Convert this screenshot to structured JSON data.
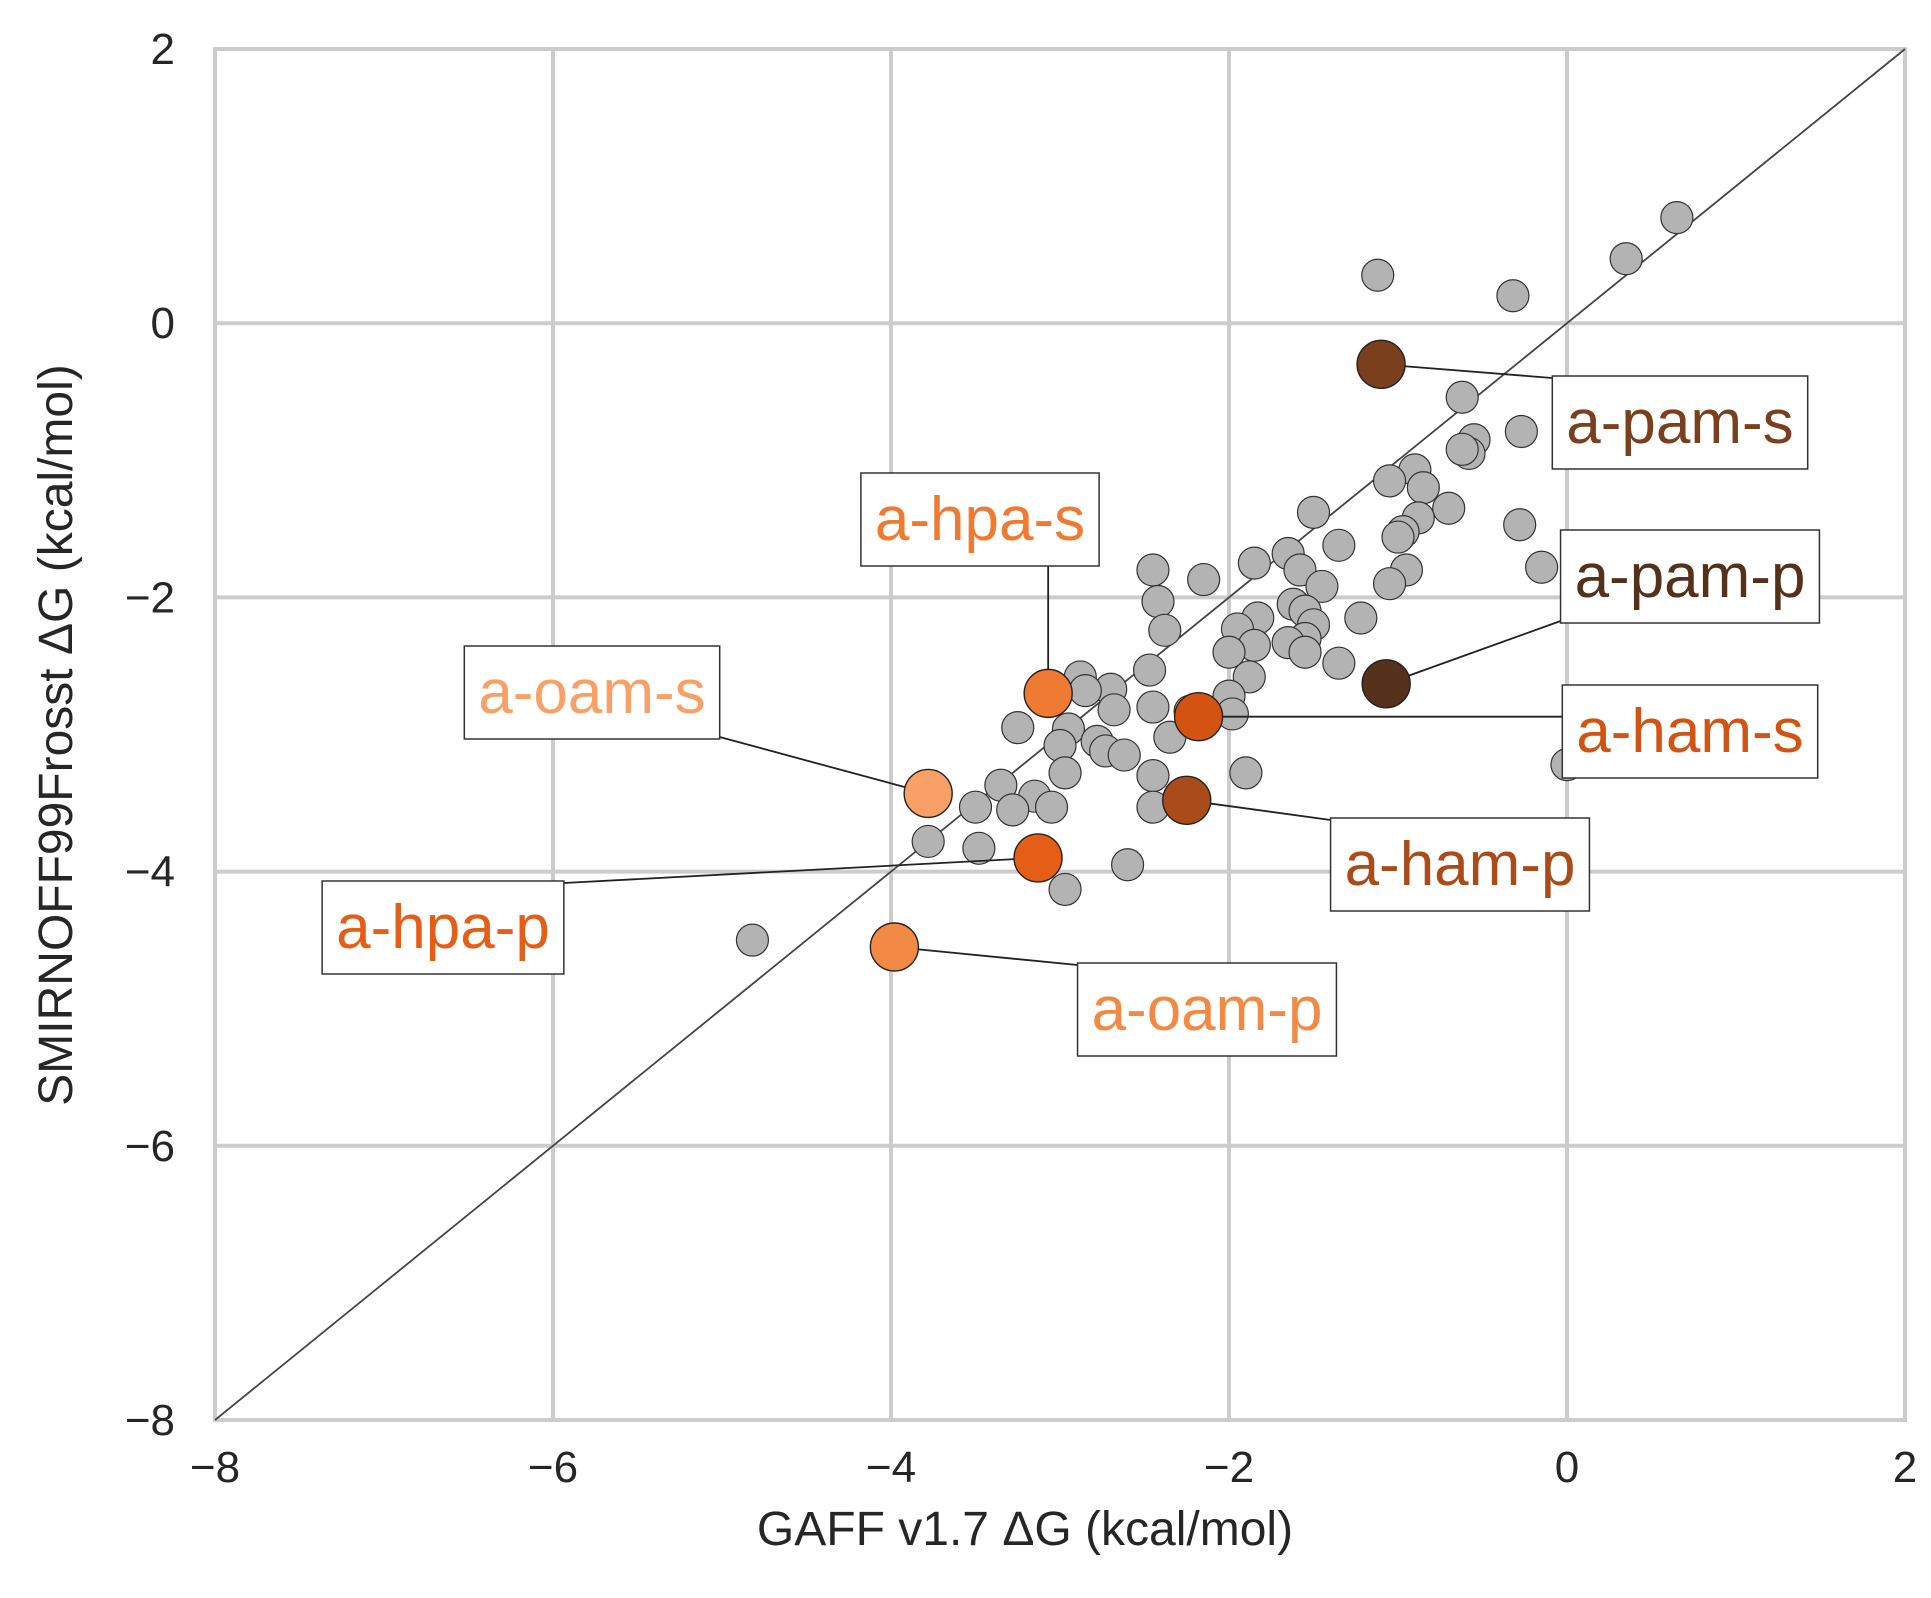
{
  "chart_data": {
    "type": "scatter",
    "xlabel": "GAFF v1.7 ΔG (kcal/mol)",
    "ylabel": "SMIRNOFF99Frosst ΔG (kcal/mol)",
    "xlim": [
      -8,
      2
    ],
    "ylim": [
      -8,
      2
    ],
    "x_ticks": [
      -8,
      -6,
      -4,
      -2,
      0,
      2
    ],
    "y_ticks": [
      -8,
      -6,
      -4,
      -2,
      0,
      2
    ],
    "x_tick_labels": [
      "−8",
      "−6",
      "−4",
      "−2",
      "0",
      "2"
    ],
    "y_tick_labels": [
      "−8",
      "−6",
      "−4",
      "−2",
      "0",
      "2"
    ],
    "grid": true,
    "identity_line": true,
    "colors": {
      "gray_point": "#b3b3b3",
      "grid": "#cccccc",
      "axis_text": "#262626",
      "identity_line": "#444444"
    },
    "points": [
      [
        0.65,
        0.77
      ],
      [
        0.35,
        0.47
      ],
      [
        -1.12,
        0.35
      ],
      [
        -0.32,
        0.2
      ],
      [
        -0.62,
        -0.54
      ],
      [
        -0.27,
        -0.79
      ],
      [
        0.25,
        -0.79
      ],
      [
        -0.55,
        -0.85
      ],
      [
        -0.58,
        -0.95
      ],
      [
        -0.62,
        -0.92
      ],
      [
        -0.9,
        -1.07
      ],
      [
        -1.05,
        -1.15
      ],
      [
        -0.85,
        -1.2
      ],
      [
        -0.7,
        -1.35
      ],
      [
        -1.5,
        -1.38
      ],
      [
        -0.28,
        -1.47
      ],
      [
        -0.88,
        -1.42
      ],
      [
        -0.97,
        -1.52
      ],
      [
        -1.0,
        -1.56
      ],
      [
        -1.35,
        -1.62
      ],
      [
        -1.65,
        -1.68
      ],
      [
        -1.58,
        -1.8
      ],
      [
        -1.85,
        -1.75
      ],
      [
        -2.45,
        -1.8
      ],
      [
        -2.15,
        -1.87
      ],
      [
        -0.95,
        -1.8
      ],
      [
        -0.15,
        -1.78
      ],
      [
        -1.05,
        -1.9
      ],
      [
        -1.45,
        -1.92
      ],
      [
        -1.62,
        -2.05
      ],
      [
        -2.42,
        -2.03
      ],
      [
        -1.55,
        -2.1
      ],
      [
        -1.22,
        -2.15
      ],
      [
        -1.5,
        -2.2
      ],
      [
        -1.83,
        -2.15
      ],
      [
        -1.95,
        -2.23
      ],
      [
        -2.38,
        -2.24
      ],
      [
        -1.55,
        -2.3
      ],
      [
        -1.65,
        -2.33
      ],
      [
        -1.85,
        -2.35
      ],
      [
        -1.55,
        -2.4
      ],
      [
        -2.0,
        -2.4
      ],
      [
        -1.35,
        -2.48
      ],
      [
        -2.47,
        -2.53
      ],
      [
        -2.88,
        -2.58
      ],
      [
        -1.88,
        -2.58
      ],
      [
        -2.7,
        -2.67
      ],
      [
        -2.85,
        -2.68
      ],
      [
        -2.0,
        -2.72
      ],
      [
        -2.45,
        -2.8
      ],
      [
        -2.23,
        -2.83
      ],
      [
        -2.68,
        -2.82
      ],
      [
        -1.98,
        -2.85
      ],
      [
        -3.25,
        -2.95
      ],
      [
        -2.95,
        -2.96
      ],
      [
        -2.35,
        -3.02
      ],
      [
        -2.78,
        -3.05
      ],
      [
        -3.0,
        -3.08
      ],
      [
        -2.73,
        -3.12
      ],
      [
        -2.62,
        -3.15
      ],
      [
        -2.97,
        -3.28
      ],
      [
        -1.9,
        -3.28
      ],
      [
        -2.45,
        -3.3
      ],
      [
        -3.35,
        -3.37
      ],
      [
        -3.15,
        -3.45
      ],
      [
        -3.5,
        -3.53
      ],
      [
        -3.28,
        -3.55
      ],
      [
        -3.05,
        -3.53
      ],
      [
        -2.45,
        -3.53
      ],
      [
        -3.78,
        -3.78
      ],
      [
        -3.48,
        -3.83
      ],
      [
        -2.6,
        -3.95
      ],
      [
        -2.97,
        -4.13
      ],
      [
        -4.82,
        -4.5
      ],
      [
        0.28,
        -0.78
      ],
      [
        0.0,
        -3.22
      ]
    ],
    "highlighted": [
      {
        "label": "a-pam-s",
        "x": -1.1,
        "y": -0.3,
        "color": "#7a3f1d"
      },
      {
        "label": "a-pam-p",
        "x": -1.07,
        "y": -2.63,
        "color": "#55301b"
      },
      {
        "label": "a-hpa-s",
        "x": -3.07,
        "y": -2.7,
        "color": "#f07a32"
      },
      {
        "label": "a-ham-s",
        "x": -2.18,
        "y": -2.87,
        "color": "#d35412"
      },
      {
        "label": "a-oam-s",
        "x": -3.78,
        "y": -3.43,
        "color": "#f9a066"
      },
      {
        "label": "a-ham-p",
        "x": -2.25,
        "y": -3.48,
        "color": "#a94c1a"
      },
      {
        "label": "a-hpa-p",
        "x": -3.13,
        "y": -3.9,
        "color": "#e45e18"
      },
      {
        "label": "a-oam-p",
        "x": -3.98,
        "y": -4.55,
        "color": "#f28a45"
      }
    ]
  }
}
